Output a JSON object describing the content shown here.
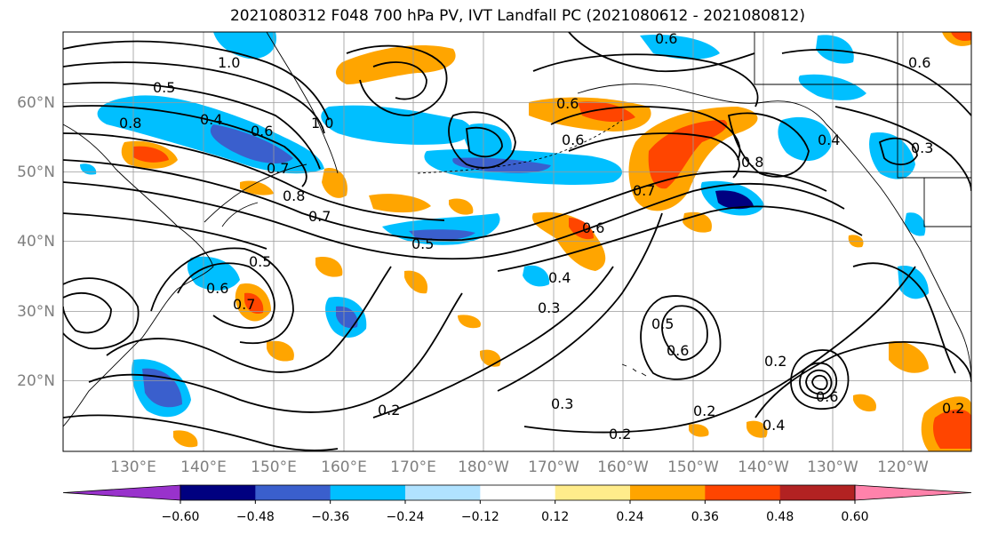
{
  "title": "2021080312 F048 700 hPa PV, IVT Landfall PC (2021080612 - 2021080812)",
  "lon_labels": [
    "130°E",
    "140°E",
    "150°E",
    "160°E",
    "170°E",
    "180°W",
    "170°W",
    "160°W",
    "150°W",
    "140°W",
    "130°W",
    "120°W"
  ],
  "lat_labels": [
    "60°N",
    "50°N",
    "40°N",
    "30°N",
    "20°N"
  ],
  "colorbar": {
    "ticks": [
      "−0.60",
      "−0.48",
      "−0.36",
      "−0.24",
      "−0.12",
      "0.12",
      "0.24",
      "0.36",
      "0.48",
      "0.60"
    ],
    "colors": [
      "#9932cc",
      "#000080",
      "#3a5fcd",
      "#00bfff",
      "#b0e2ff",
      "#ffffff",
      "#ffec8b",
      "#ffa500",
      "#ff4500",
      "#b22222",
      "#ff82ab"
    ]
  },
  "contour_labels": [
    "1.0",
    "0.5",
    "0.8",
    "0.4",
    "0.6",
    "0.7",
    "1.0",
    "0.6",
    "0.8",
    "0.7",
    "0.5",
    "0.5",
    "0.6",
    "0.7",
    "0.6",
    "0.4",
    "0.3",
    "0.2",
    "0.3",
    "0.2",
    "0.5",
    "0.6",
    "0.2",
    "0.2",
    "0.4",
    "0.6",
    "0.7",
    "0.8",
    "0.6",
    "0.6",
    "0.6",
    "0.4",
    "0.3",
    "0.2"
  ]
}
